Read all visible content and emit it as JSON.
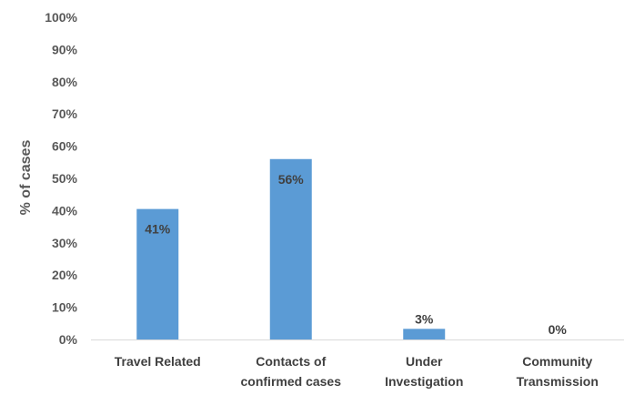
{
  "chart_data": {
    "type": "bar",
    "title": "",
    "xlabel": "",
    "ylabel": "% of cases",
    "ylim": [
      0,
      100
    ],
    "yticks": [
      "0%",
      "10%",
      "20%",
      "30%",
      "40%",
      "50%",
      "60%",
      "70%",
      "80%",
      "90%",
      "100%"
    ],
    "categories": [
      [
        "Travel Related"
      ],
      [
        "Contacts of",
        "confirmed cases"
      ],
      [
        "Under",
        "Investigation"
      ],
      [
        "Community",
        "Transmission"
      ]
    ],
    "values": [
      40.5,
      56,
      3.3,
      0
    ],
    "data_labels": [
      "41%",
      "56%",
      "3%",
      "0%"
    ],
    "bar_color": "#5B9BD5",
    "axis_color": "#d9d9d9",
    "grid": false,
    "legend": "none"
  }
}
